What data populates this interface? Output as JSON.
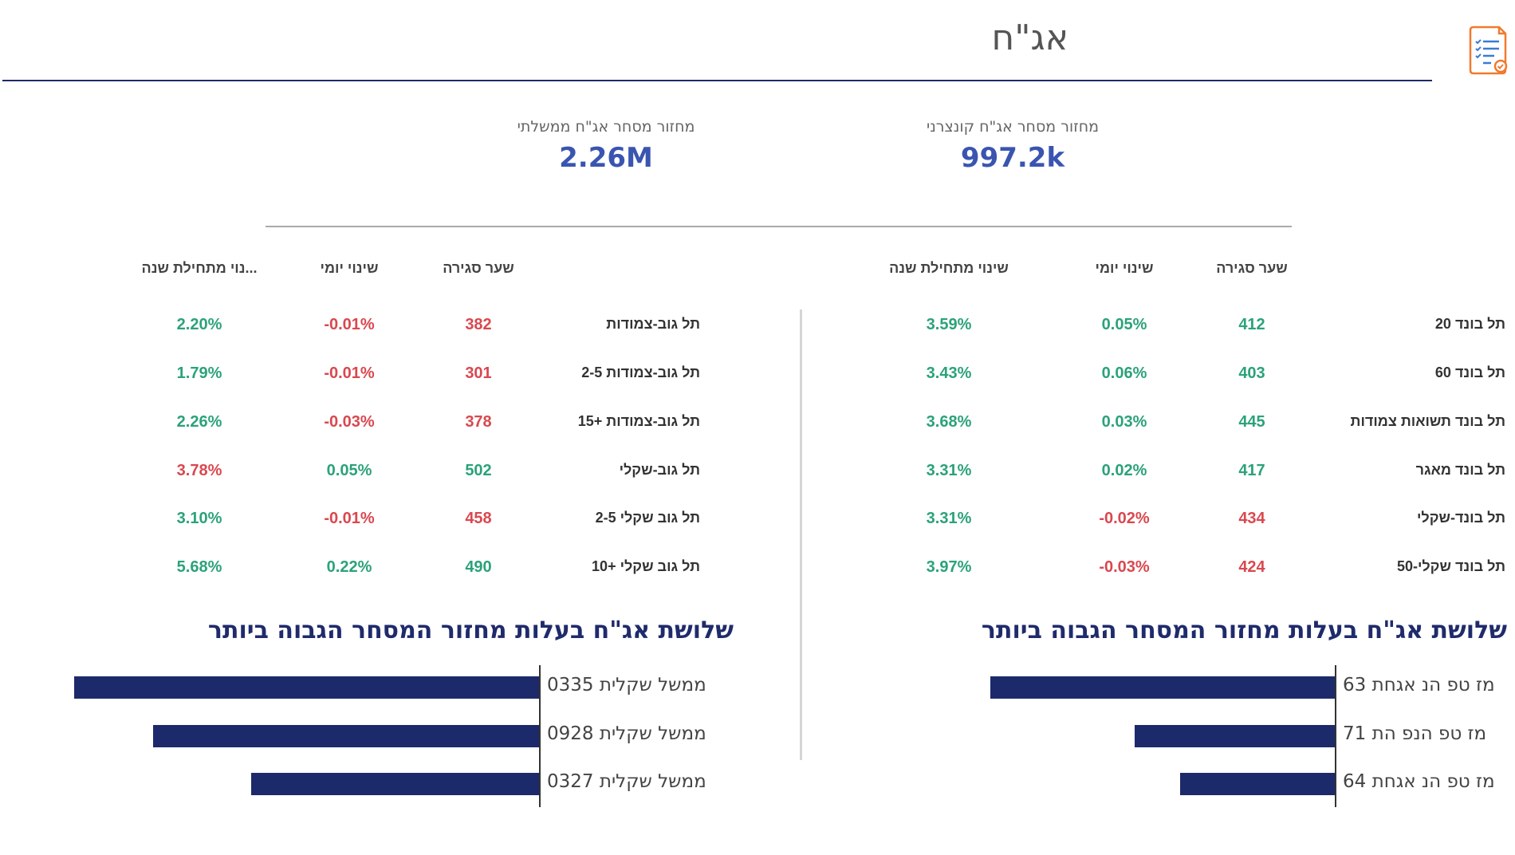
{
  "header": {
    "title": "אג\"ח",
    "icon": "document-checklist-icon"
  },
  "kpis": {
    "corporate": {
      "label": "מחזור מסחר אג\"ח קונצרני",
      "value": "997.2k"
    },
    "government": {
      "label": "מחזור מסחר אג\"ח ממשלתי",
      "value": "2.26M"
    }
  },
  "right_table": {
    "headers": {
      "close": "שער סגירה",
      "daily": "שינוי יומי",
      "ytd": "שינוי מתחילת שנה"
    },
    "rows": [
      {
        "name": "תל בונד 20",
        "close": "412",
        "daily": "0.05%",
        "ytd": "3.59%",
        "close_color": "green",
        "daily_color": "green",
        "ytd_color": "green"
      },
      {
        "name": "תל בונד 60",
        "close": "403",
        "daily": "0.06%",
        "ytd": "3.43%",
        "close_color": "green",
        "daily_color": "green",
        "ytd_color": "green"
      },
      {
        "name": "תל בונד תשואות צמודות",
        "close": "445",
        "daily": "0.03%",
        "ytd": "3.68%",
        "close_color": "green",
        "daily_color": "green",
        "ytd_color": "green"
      },
      {
        "name": "תל בונד מאגר",
        "close": "417",
        "daily": "0.02%",
        "ytd": "3.31%",
        "close_color": "green",
        "daily_color": "green",
        "ytd_color": "green"
      },
      {
        "name": "תל בונד-שקלי",
        "close": "434",
        "daily": "-0.02%",
        "ytd": "3.31%",
        "close_color": "red",
        "daily_color": "red",
        "ytd_color": "green"
      },
      {
        "name": "תל בונד שקלי-50",
        "close": "424",
        "daily": "-0.03%",
        "ytd": "3.97%",
        "close_color": "red",
        "daily_color": "red",
        "ytd_color": "green"
      }
    ]
  },
  "left_table": {
    "headers": {
      "close": "שער סגירה",
      "daily": "שינוי יומי",
      "ytd": "...נוי מתחילת שנה"
    },
    "rows": [
      {
        "name": "תל גוב-צמודות",
        "close": "382",
        "daily": "-0.01%",
        "ytd": "2.20%",
        "close_color": "red",
        "daily_color": "red",
        "ytd_color": "green"
      },
      {
        "name": "תל גוב-צמודות 2-5",
        "close": "301",
        "daily": "-0.01%",
        "ytd": "1.79%",
        "close_color": "red",
        "daily_color": "red",
        "ytd_color": "green"
      },
      {
        "name": "תל גוב-צמודות +15",
        "close": "378",
        "daily": "-0.03%",
        "ytd": "2.26%",
        "close_color": "red",
        "daily_color": "red",
        "ytd_color": "green"
      },
      {
        "name": "תל גוב-שקלי",
        "close": "502",
        "daily": "0.05%",
        "ytd": "3.78%",
        "close_color": "green",
        "daily_color": "green",
        "ytd_color": "red"
      },
      {
        "name": "תל גוב שקלי 2-5",
        "close": "458",
        "daily": "-0.01%",
        "ytd": "3.10%",
        "close_color": "red",
        "daily_color": "red",
        "ytd_color": "green"
      },
      {
        "name": "תל גוב שקלי +10",
        "close": "490",
        "daily": "0.22%",
        "ytd": "5.68%",
        "close_color": "green",
        "daily_color": "green",
        "ytd_color": "green"
      }
    ]
  },
  "right_chart": {
    "title": "שלושת אג\"ח בעלות מחזור המסחר הגבוה ביותר",
    "bars": [
      {
        "label": "מז טפ הנ אגחת 63",
        "value": 1.0
      },
      {
        "label": "מז טפ הנפ הת 71",
        "value": 0.58
      },
      {
        "label": "מז טפ הנ אגחת 64",
        "value": 0.45
      }
    ]
  },
  "left_chart": {
    "title": "שלושת אג\"ח בעלות מחזור המסחר הגבוה ביותר",
    "bars": [
      {
        "label": "ממשל שקלית 0335",
        "value": 1.0
      },
      {
        "label": "ממשל שקלית 0928",
        "value": 0.83
      },
      {
        "label": "ממשל שקלית 0327",
        "value": 0.62
      }
    ]
  },
  "colors": {
    "green": "#2ba27a",
    "red": "#d9484f",
    "navy": "#1c2a6b",
    "accent": "#3a55b0",
    "icon_orange": "#f07a2e"
  }
}
